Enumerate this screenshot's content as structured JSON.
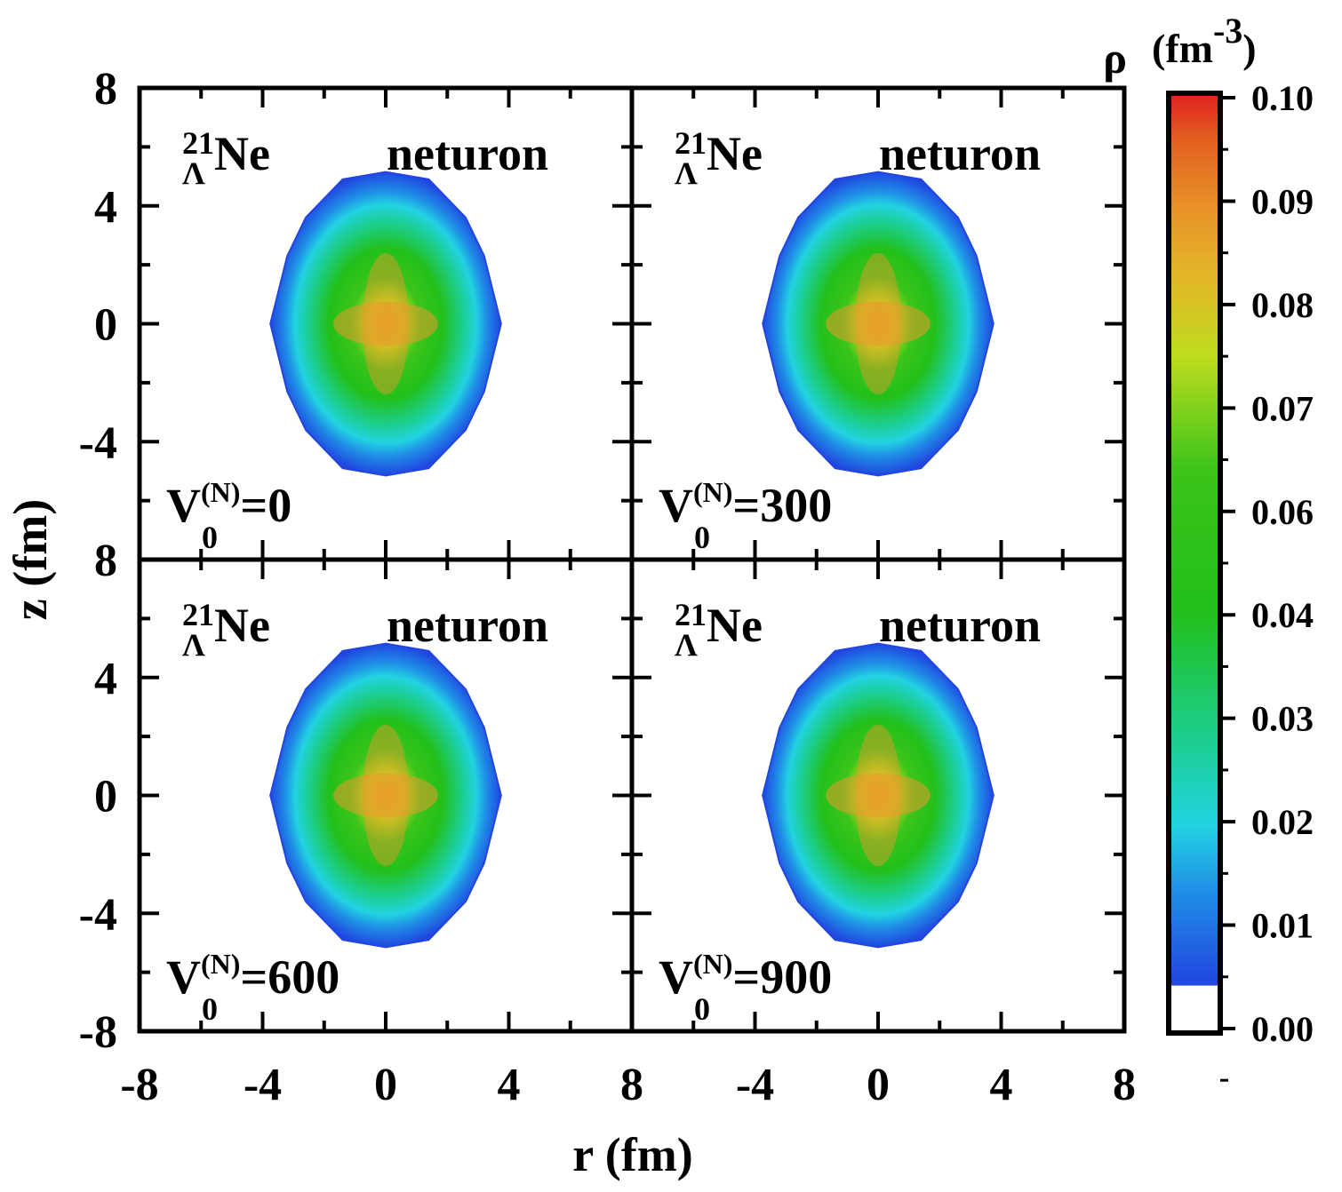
{
  "chart_data": {
    "type": "heatmap",
    "title": "",
    "xlabel": "r (fm)",
    "ylabel": "z (fm)",
    "xlim": [
      -8,
      8
    ],
    "ylim": [
      -8,
      8
    ],
    "x_ticks": [
      "-8",
      "-4",
      "0",
      "4",
      "8"
    ],
    "x_ticks_right": [
      "-4",
      "0",
      "4",
      "8"
    ],
    "y_ticks_top": [
      "8",
      "4",
      "0",
      "-4"
    ],
    "y_ticks_bottom": [
      "8",
      "4",
      "0",
      "-4",
      "-8"
    ],
    "colorbar": {
      "label": "ρ",
      "unit_open": "(",
      "unit_base": "fm",
      "unit_exp": "-3",
      "unit_close": ")",
      "range": [
        0.0,
        0.1
      ],
      "ticks": [
        "0.00",
        "0.01",
        "0.02",
        "0.03",
        "0.04",
        "0.06",
        "0.07",
        "0.08",
        "0.09",
        "0.10"
      ],
      "colors": [
        {
          "value": 0.0,
          "color": "#ffffff"
        },
        {
          "value": 0.005,
          "color": "#ffffff"
        },
        {
          "value": 0.0051,
          "color": "#2146e0"
        },
        {
          "value": 0.015,
          "color": "#1f8ee6"
        },
        {
          "value": 0.022,
          "color": "#22d2e2"
        },
        {
          "value": 0.03,
          "color": "#1ccf9a"
        },
        {
          "value": 0.045,
          "color": "#22c01a"
        },
        {
          "value": 0.06,
          "color": "#3cc41a"
        },
        {
          "value": 0.072,
          "color": "#bedc1e"
        },
        {
          "value": 0.08,
          "color": "#e2b828"
        },
        {
          "value": 0.088,
          "color": "#e89028"
        },
        {
          "value": 0.095,
          "color": "#e26020"
        },
        {
          "value": 0.1,
          "color": "#e02020"
        }
      ]
    },
    "panels": [
      {
        "nucleus_mass": "21",
        "nucleus_sub": "Λ",
        "nucleus_elem": "Ne",
        "species": "neturon",
        "v_base": "V",
        "v_sub": "0",
        "v_sup": "(N)",
        "v_eq": "=0",
        "v0": 0,
        "peak_density": 0.084
      },
      {
        "nucleus_mass": "21",
        "nucleus_sub": "Λ",
        "nucleus_elem": "Ne",
        "species": "neturon",
        "v_base": "V",
        "v_sub": "0",
        "v_sup": "(N)",
        "v_eq": "=300",
        "v0": 300,
        "peak_density": 0.084
      },
      {
        "nucleus_mass": "21",
        "nucleus_sub": "Λ",
        "nucleus_elem": "Ne",
        "species": "neturon",
        "v_base": "V",
        "v_sub": "0",
        "v_sup": "(N)",
        "v_eq": "=600",
        "v0": 600,
        "peak_density": 0.084
      },
      {
        "nucleus_mass": "21",
        "nucleus_sub": "Λ",
        "nucleus_elem": "Ne",
        "species": "neturon",
        "v_base": "V",
        "v_sub": "0",
        "v_sup": "(N)",
        "v_eq": "=900",
        "v0": 900,
        "peak_density": 0.084
      }
    ]
  }
}
